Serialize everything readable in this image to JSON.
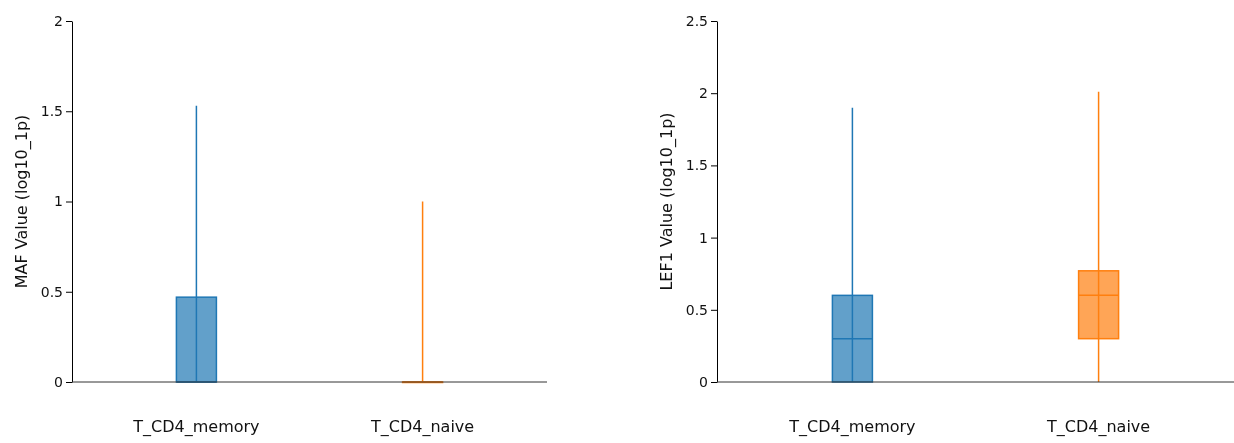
{
  "chart_data": [
    {
      "type": "box",
      "ylabel": "MAF Value (log10_1p)",
      "categories": [
        "T_CD4_memory",
        "T_CD4_naive"
      ],
      "colors": [
        "#1f77b4",
        "#ff7f0e"
      ],
      "boxes": [
        {
          "low": 0,
          "q1": 0,
          "median": 0,
          "q3": 0.47,
          "high": 1.53
        },
        {
          "low": 0,
          "q1": 0,
          "median": 0,
          "q3": 0,
          "high": 1.0
        }
      ],
      "ylim": [
        0,
        2
      ],
      "yticks": [
        0,
        0.5,
        1,
        1.5,
        2
      ]
    },
    {
      "type": "box",
      "ylabel": "LEF1 Value (log10_1p)",
      "categories": [
        "T_CD4_memory",
        "T_CD4_naive"
      ],
      "colors": [
        "#1f77b4",
        "#ff7f0e"
      ],
      "boxes": [
        {
          "low": 0,
          "q1": 0,
          "median": 0.3,
          "q3": 0.6,
          "high": 1.9
        },
        {
          "low": 0,
          "q1": 0.3,
          "median": 0.6,
          "q3": 0.77,
          "high": 2.01
        }
      ],
      "ylim": [
        0,
        2.5
      ],
      "yticks": [
        0,
        0.5,
        1,
        1.5,
        2,
        2.5
      ]
    }
  ]
}
